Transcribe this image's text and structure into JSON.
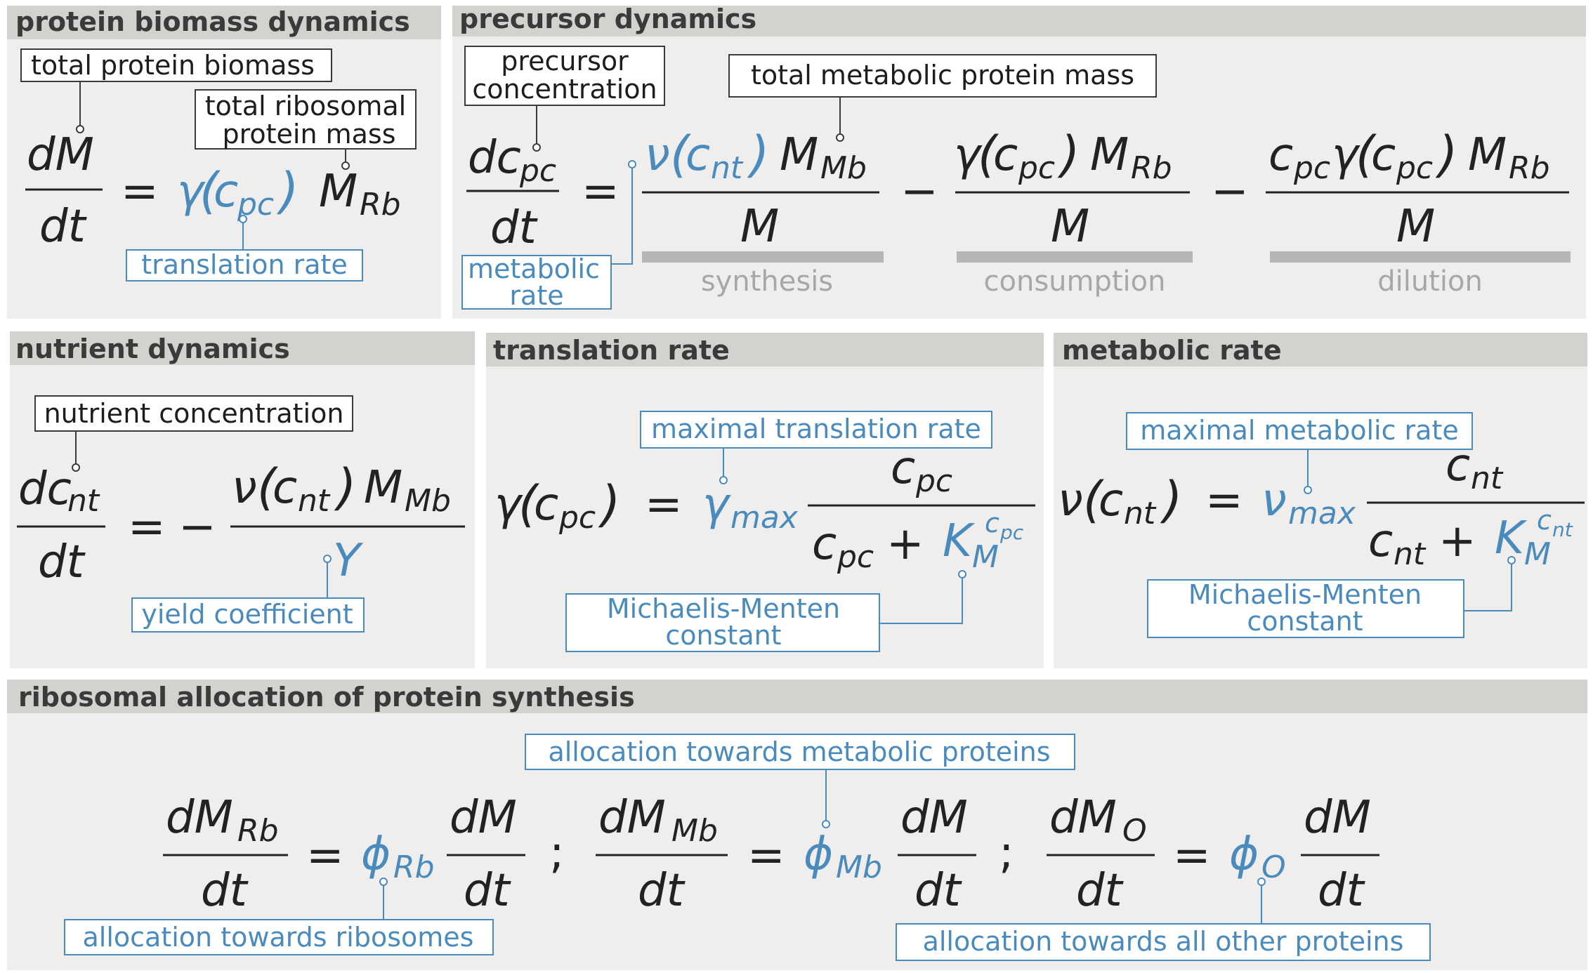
{
  "panels": {
    "protein_biomass": {
      "title": "protein biomass dynamics",
      "labels": {
        "total_protein_biomass": "total protein biomass",
        "total_ribosomal_1": "total ribosomal",
        "total_ribosomal_2": "protein mass",
        "translation_rate": "translation rate"
      }
    },
    "precursor": {
      "title": "precursor dynamics",
      "labels": {
        "precursor_1": "precursor",
        "precursor_2": "concentration",
        "total_metabolic": "total metabolic protein mass",
        "metabolic_rate_1": "metabolic",
        "metabolic_rate_2": "rate"
      },
      "terms": [
        "synthesis",
        "consumption",
        "dilution"
      ]
    },
    "nutrient": {
      "title": "nutrient dynamics",
      "labels": {
        "nutrient_concentration": "nutrient concentration",
        "yield_coefficient": "yield coefficient"
      }
    },
    "translation": {
      "title": "translation rate",
      "labels": {
        "maximal": "maximal translation rate",
        "mm_1": "Michaelis-Menten",
        "mm_2": "constant"
      }
    },
    "metabolic": {
      "title": "metabolic rate",
      "labels": {
        "maximal": "maximal metabolic rate",
        "mm_1": "Michaelis-Menten",
        "mm_2": "constant"
      }
    },
    "allocation": {
      "title": "ribosomal allocation of protein synthesis",
      "labels": {
        "towards_metabolic": "allocation towards metabolic proteins",
        "towards_ribosomes": "allocation towards ribosomes",
        "towards_other": "allocation towards all other proteins"
      }
    }
  },
  "colors": {
    "panel_bg": "#efeeed",
    "header_bg": "#d3d2ce",
    "accent_blue": "#4a8bbd",
    "bar_gray": "#b6b6b6"
  }
}
